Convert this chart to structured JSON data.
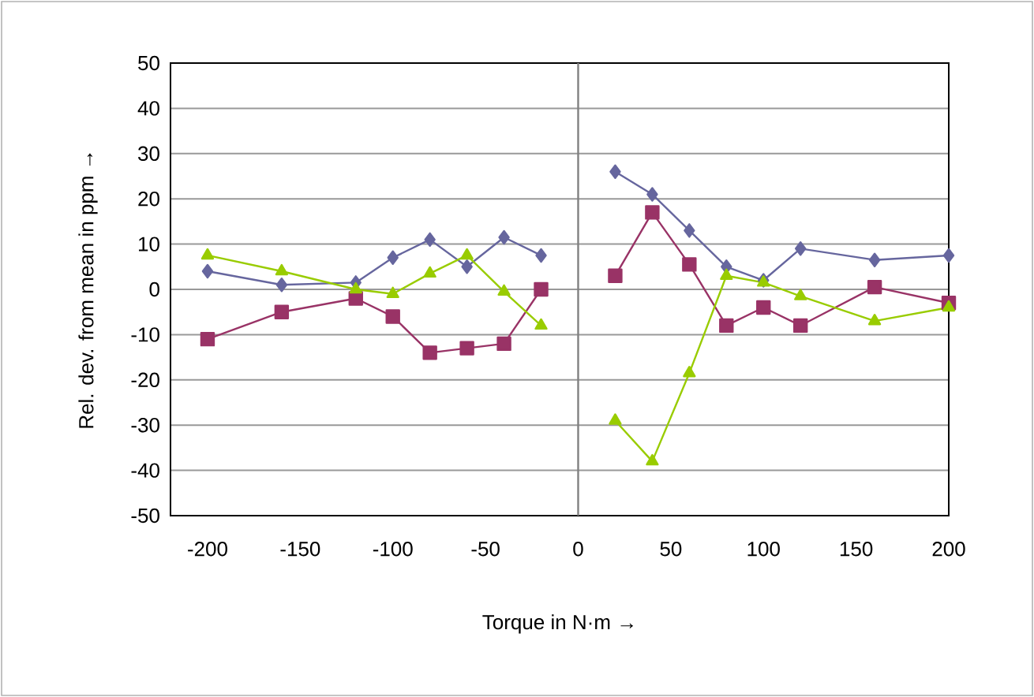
{
  "chart_data": {
    "type": "line",
    "xlabel": "Torque in N·m  →",
    "ylabel": "Rel. dev. from mean in ppm →",
    "x": [
      -200,
      -160,
      -120,
      -100,
      -80,
      -60,
      -40,
      -20,
      0,
      20,
      40,
      60,
      80,
      100,
      120,
      160,
      200
    ],
    "series": [
      {
        "color": "#66669e",
        "marker": "diamond",
        "values": [
          4,
          1,
          1.5,
          7,
          11,
          5,
          11.5,
          7.5,
          null,
          26,
          21,
          13,
          5,
          2,
          9,
          6.5,
          7.5
        ]
      },
      {
        "color": "#993366",
        "marker": "square",
        "values": [
          -11,
          -5,
          -2,
          -6,
          -14,
          -13,
          -12,
          0,
          null,
          3,
          17,
          5.5,
          -8,
          -4,
          -8,
          0.5,
          -3
        ]
      },
      {
        "color": "#99cc00",
        "marker": "triangle",
        "values": [
          7.5,
          4,
          0,
          -1,
          3.5,
          7.5,
          -0.5,
          -8,
          null,
          -29,
          -38,
          -18.5,
          3,
          1.5,
          -1.5,
          -7,
          -4
        ]
      }
    ],
    "xlim": [
      -220,
      200
    ],
    "ylim": [
      -50,
      50
    ],
    "xticks": [
      -200,
      -150,
      -100,
      -50,
      0,
      50,
      100,
      150,
      200
    ],
    "yticks": [
      -50,
      -40,
      -30,
      -20,
      -10,
      0,
      10,
      20,
      30,
      40,
      50
    ],
    "grid": "y",
    "ref_lines": [
      {
        "axis": "x",
        "value": 0,
        "color": "#808080"
      }
    ]
  }
}
